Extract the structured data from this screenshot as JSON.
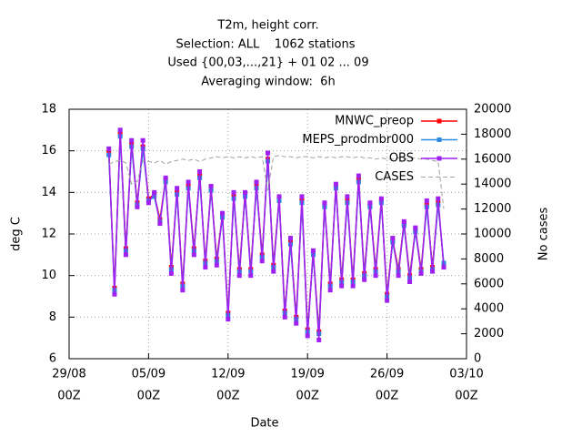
{
  "chart_data": {
    "type": "line",
    "title": [
      "T2m, height corr.",
      "Selection: ALL    1062 stations",
      "Used {00,03,...,21} + 01 02 ... 09",
      "Averaging window:  6h"
    ],
    "xlabel": "Date",
    "ylabel": "deg C",
    "y2label": "No cases",
    "x": [
      "01/09 12Z",
      "02/09 00Z",
      "02/09 12Z",
      "03/09 00Z",
      "03/09 12Z",
      "04/09 00Z",
      "04/09 12Z",
      "05/09 00Z",
      "05/09 12Z",
      "06/09 00Z",
      "06/09 12Z",
      "07/09 00Z",
      "07/09 12Z",
      "08/09 00Z",
      "08/09 12Z",
      "09/09 00Z",
      "09/09 12Z",
      "10/09 00Z",
      "10/09 12Z",
      "11/09 00Z",
      "11/09 12Z",
      "12/09 00Z",
      "12/09 12Z",
      "13/09 00Z",
      "13/09 12Z",
      "14/09 00Z",
      "14/09 12Z",
      "15/09 00Z",
      "15/09 12Z",
      "16/09 00Z",
      "16/09 12Z",
      "17/09 00Z",
      "17/09 12Z",
      "18/09 00Z",
      "18/09 12Z",
      "19/09 00Z",
      "19/09 12Z",
      "20/09 00Z",
      "20/09 12Z",
      "21/09 00Z",
      "21/09 12Z",
      "22/09 00Z",
      "22/09 12Z",
      "23/09 00Z",
      "23/09 12Z",
      "24/09 00Z",
      "24/09 12Z",
      "25/09 00Z",
      "25/09 12Z",
      "26/09 00Z",
      "26/09 12Z",
      "27/09 00Z",
      "27/09 12Z",
      "28/09 00Z",
      "28/09 12Z",
      "29/09 00Z",
      "29/09 12Z",
      "30/09 00Z",
      "30/09 12Z",
      "01/10 00Z"
    ],
    "series": [
      {
        "name": "MNWC_preop",
        "color": "#ff0000",
        "values": [
          15.9,
          9.4,
          16.8,
          11.3,
          16.3,
          13.5,
          16.2,
          13.7,
          13.9,
          12.7,
          14.6,
          10.4,
          14,
          9.6,
          14.3,
          11.3,
          14.8,
          10.7,
          14.2,
          10.8,
          12.9,
          8.2,
          13.8,
          10.3,
          13.9,
          10.3,
          14.3,
          11,
          15.6,
          10.5,
          13.7,
          8.3,
          11.6,
          8,
          13.6,
          7.4,
          11.1,
          7.3,
          13.4,
          9.6,
          14.3,
          9.8,
          13.6,
          9.8,
          14.6,
          10.1,
          13.4,
          10.3,
          13.6,
          9.1,
          11.7,
          10.3,
          12.5,
          10,
          12.2,
          10.3,
          13.4,
          10.4,
          13.5,
          10.5
        ]
      },
      {
        "name": "MEPS_prodmbr000",
        "color": "#2a8be0",
        "values": [
          15.8,
          9.3,
          16.7,
          11.2,
          16.2,
          13.4,
          16.1,
          13.6,
          13.8,
          12.6,
          14.5,
          10.3,
          13.9,
          9.5,
          14.2,
          11.2,
          14.7,
          10.6,
          14.1,
          10.7,
          12.8,
          8.1,
          13.7,
          10.2,
          13.8,
          10.2,
          14.2,
          10.9,
          15.5,
          10.4,
          13.6,
          8.2,
          11.5,
          7.9,
          13.5,
          7.3,
          11,
          7.2,
          13.3,
          9.5,
          14.2,
          9.7,
          13.5,
          9.7,
          14.5,
          10,
          13.3,
          10.2,
          13.5,
          9,
          11.6,
          10.2,
          12.4,
          9.9,
          12.1,
          10.2,
          13.3,
          10.3,
          13.4,
          10.6
        ]
      },
      {
        "name": "OBS",
        "color": "#a020f0",
        "values": [
          16.1,
          9.1,
          17,
          11,
          16.5,
          13.3,
          16.5,
          13.5,
          14,
          12.5,
          14.7,
          10.1,
          14.2,
          9.3,
          14.5,
          11,
          15,
          10.4,
          14.3,
          10.5,
          13,
          7.9,
          14,
          10,
          14,
          10,
          14.5,
          10.7,
          15.9,
          10.2,
          13.8,
          8,
          11.8,
          7.7,
          13.8,
          7.1,
          11.2,
          6.9,
          13.5,
          9.3,
          14.4,
          9.5,
          13.8,
          9.5,
          14.8,
          9.8,
          13.5,
          10,
          13.7,
          8.8,
          11.8,
          10,
          12.6,
          9.7,
          12.3,
          10.1,
          13.6,
          10.2,
          13.7,
          10.4
        ]
      },
      {
        "name": "CASES",
        "color": "#a0a0a0",
        "axis": "y2",
        "dashed": true,
        "values": [
          15600,
          15800,
          15900,
          15700,
          14000,
          14200,
          15900,
          15800,
          15700,
          15900,
          15600,
          15800,
          15900,
          16000,
          15900,
          16000,
          15800,
          16000,
          16100,
          16200,
          16100,
          16200,
          16100,
          16200,
          16100,
          16200,
          16100,
          16200,
          13500,
          16200,
          16300,
          16200,
          16200,
          16100,
          16200,
          16200,
          16100,
          16200,
          16100,
          16200,
          16100,
          16200,
          16200,
          16100,
          16200,
          16100,
          16100,
          16000,
          16100,
          16000,
          16000,
          16100,
          16000,
          16000,
          16100,
          16000,
          16000,
          15900,
          15800,
          12000
        ]
      }
    ],
    "xlim": [
      "29/08 00Z",
      "03/10 00Z"
    ],
    "xticks": [
      {
        "value": "29/08 00Z",
        "label": [
          "29/08",
          "00Z"
        ]
      },
      {
        "value": "05/09 00Z",
        "label": [
          "05/09",
          "00Z"
        ]
      },
      {
        "value": "12/09 00Z",
        "label": [
          "12/09",
          "00Z"
        ]
      },
      {
        "value": "19/09 00Z",
        "label": [
          "19/09",
          "00Z"
        ]
      },
      {
        "value": "26/09 00Z",
        "label": [
          "26/09",
          "00Z"
        ]
      },
      {
        "value": "03/10 00Z",
        "label": [
          "03/10",
          "00Z"
        ]
      }
    ],
    "ylim": [
      6,
      18
    ],
    "yticks": [
      6,
      8,
      10,
      12,
      14,
      16,
      18
    ],
    "y2lim": [
      0,
      20000
    ],
    "y2ticks": [
      0,
      2000,
      4000,
      6000,
      8000,
      10000,
      12000,
      14000,
      16000,
      18000,
      20000
    ],
    "grid": true,
    "legend": "upper right"
  }
}
